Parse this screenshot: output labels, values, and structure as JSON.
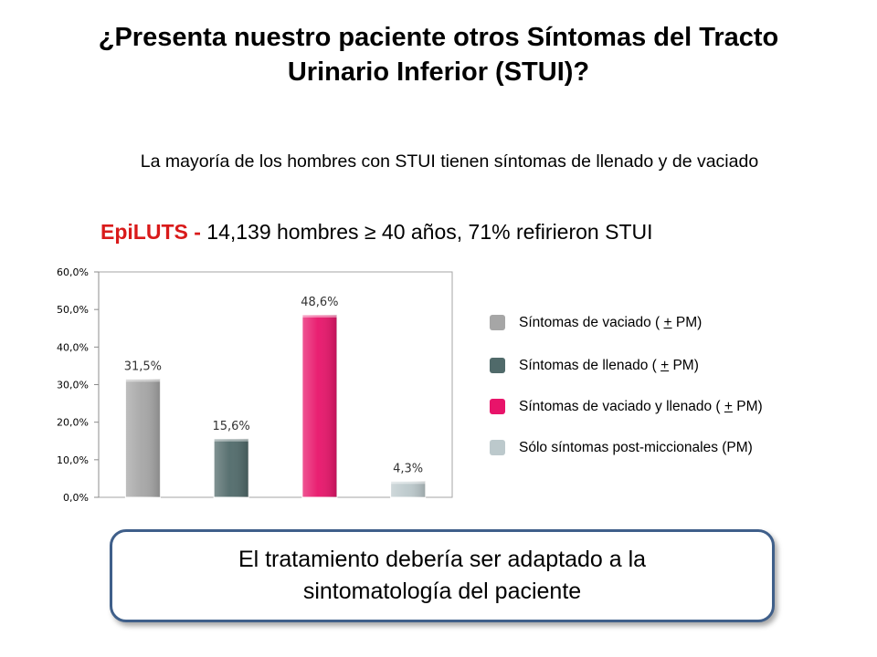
{
  "slide": {
    "title_line1": "¿Presenta nuestro paciente otros Síntomas del Tracto",
    "title_line2": "Urinario Inferior (STUI)?",
    "subtitle": "La mayoría de los hombres con STUI tienen síntomas de llenado y de vaciado",
    "study_brand": "EpiLUTS -",
    "study_detail": " 14,139 hombres ≥ 40 años, 71% refirieron STUI"
  },
  "legend": [
    {
      "label_pre": "Síntomas de vaciado ( ",
      "sign": "+",
      "label_post": " PM)",
      "color": "#a6a6a6"
    },
    {
      "label_pre": "Síntomas de llenado ( ",
      "sign": "+",
      "label_post": " PM)",
      "color": "#506a6a"
    },
    {
      "label_pre": "Síntomas de vaciado y llenado ( ",
      "sign": "+",
      "label_post": " PM)",
      "color": "#e8146a"
    },
    {
      "label_pre": "Sólo síntomas post-miccionales (PM)",
      "sign": "",
      "label_post": "",
      "color": "#bcc9cc"
    }
  ],
  "chart_data": {
    "type": "bar",
    "categories": [
      "Síntomas de vaciado (+ PM)",
      "Síntomas de llenado (+ PM)",
      "Síntomas de vaciado y llenado (+ PM)",
      "Sólo síntomas post-miccionales (PM)"
    ],
    "values": [
      31.5,
      15.6,
      48.6,
      4.3
    ],
    "data_labels": [
      "31,5%",
      "15,6%",
      "48,6%",
      "4,3%"
    ],
    "colors": [
      "#a6a6a6",
      "#506a6a",
      "#e8146a",
      "#bcc9cc"
    ],
    "y_ticks": [
      0,
      10,
      20,
      30,
      40,
      50,
      60
    ],
    "y_tick_labels": [
      "0,0%",
      "10,0%",
      "20,0%",
      "30,0%",
      "40,0%",
      "50,0%",
      "60,0%"
    ],
    "ylim": [
      0,
      60
    ],
    "grid": false,
    "legend_position": "right"
  },
  "callout": {
    "line1": "El tratamiento debería ser adaptado a la",
    "line2": "sintomatología del paciente"
  }
}
